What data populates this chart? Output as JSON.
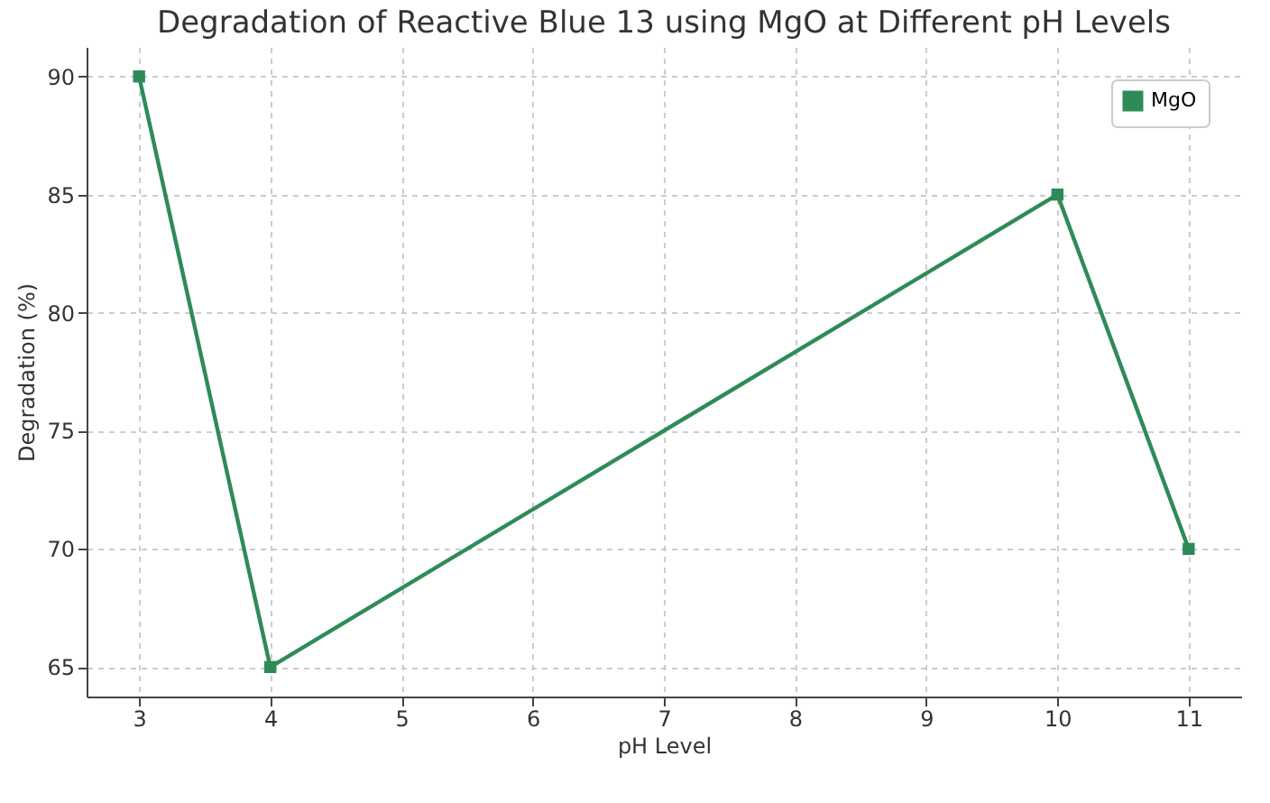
{
  "chart_data": {
    "type": "line",
    "title": "Degradation of Reactive Blue 13 using MgO at Different pH Levels",
    "xlabel": "pH Level",
    "ylabel": "Degradation (%)",
    "x": [
      3,
      4,
      10,
      11
    ],
    "series": [
      {
        "name": "MgO",
        "color": "#2e8b57",
        "values": [
          90,
          65,
          85,
          70
        ]
      }
    ],
    "xlim": [
      2.6,
      11.4
    ],
    "ylim": [
      63.75,
      91.25
    ],
    "xticks": [
      3,
      4,
      5,
      6,
      7,
      8,
      9,
      10,
      11
    ],
    "yticks": [
      65,
      70,
      75,
      80,
      85,
      90
    ],
    "grid": true,
    "legend": "top right",
    "marker": "square",
    "line_style": "solid"
  }
}
